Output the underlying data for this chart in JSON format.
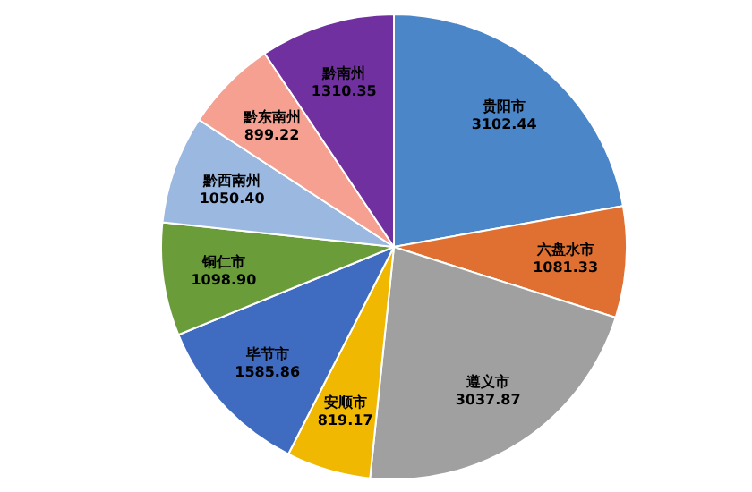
{
  "chart_data": {
    "type": "pie",
    "categories": [
      "贵阳市",
      "六盘水市",
      "遵义市",
      "安顺市",
      "毕节市",
      "铜仁市",
      "黔西南州",
      "黔东南州",
      "黔南州"
    ],
    "values": [
      3102.44,
      1081.33,
      3037.87,
      819.17,
      1585.86,
      1098.9,
      1050.4,
      899.22,
      1310.35
    ],
    "value_labels": [
      "3102.44",
      "1081.33",
      "3037.87",
      "819.17",
      "1585.86",
      "1098.90",
      "1050.40",
      "899.22",
      "1310.35"
    ],
    "colors": [
      "#4a86c8",
      "#e07032",
      "#a0a0a0",
      "#f0b800",
      "#3f6cc0",
      "#6a9c3a",
      "#9ab8e0",
      "#f5a090",
      "#7030a0"
    ],
    "legend": false
  }
}
